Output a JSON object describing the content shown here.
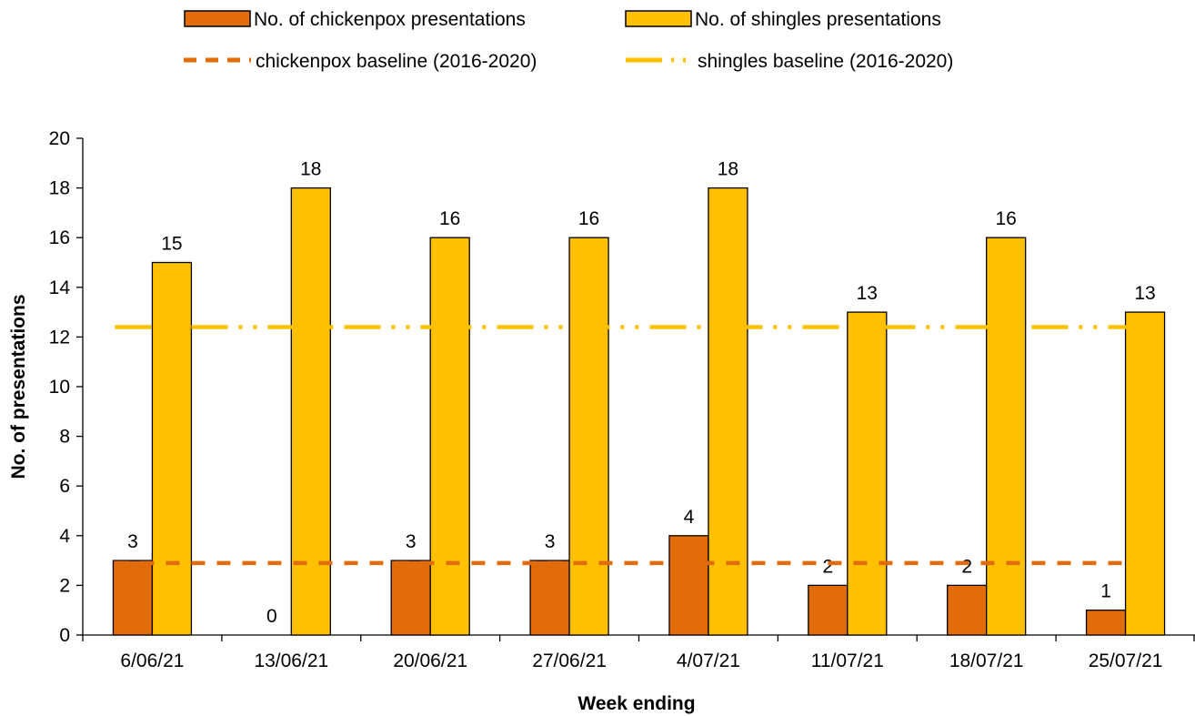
{
  "chart_data": {
    "type": "bar",
    "xlabel": "Week ending",
    "ylabel": "No. of presentations",
    "ylim": [
      0,
      20
    ],
    "yticks": [
      "0",
      "2",
      "4",
      "6",
      "8",
      "10",
      "12",
      "14",
      "16",
      "18",
      "20"
    ],
    "categories": [
      "6/06/21",
      "13/06/21",
      "20/06/21",
      "27/06/21",
      "4/07/21",
      "11/07/21",
      "18/07/21",
      "25/07/21"
    ],
    "series": [
      {
        "name": "No. of chickenpox presentations",
        "kind": "bar",
        "color": "#E36C0A",
        "values": [
          3,
          0,
          3,
          3,
          4,
          2,
          2,
          1
        ]
      },
      {
        "name": "No. of shingles presentations",
        "kind": "bar",
        "color": "#FFC000",
        "values": [
          15,
          18,
          16,
          16,
          18,
          13,
          16,
          13
        ]
      },
      {
        "name": "chickenpox baseline (2016-2020)",
        "kind": "line",
        "style": "dashed",
        "color": "#E36C0A",
        "value": 2.9
      },
      {
        "name": "shingles baseline (2016-2020)",
        "kind": "line",
        "style": "dash-dot-dot",
        "color": "#FFC000",
        "value": 12.4
      }
    ],
    "grid": false,
    "legend_position": "top"
  }
}
